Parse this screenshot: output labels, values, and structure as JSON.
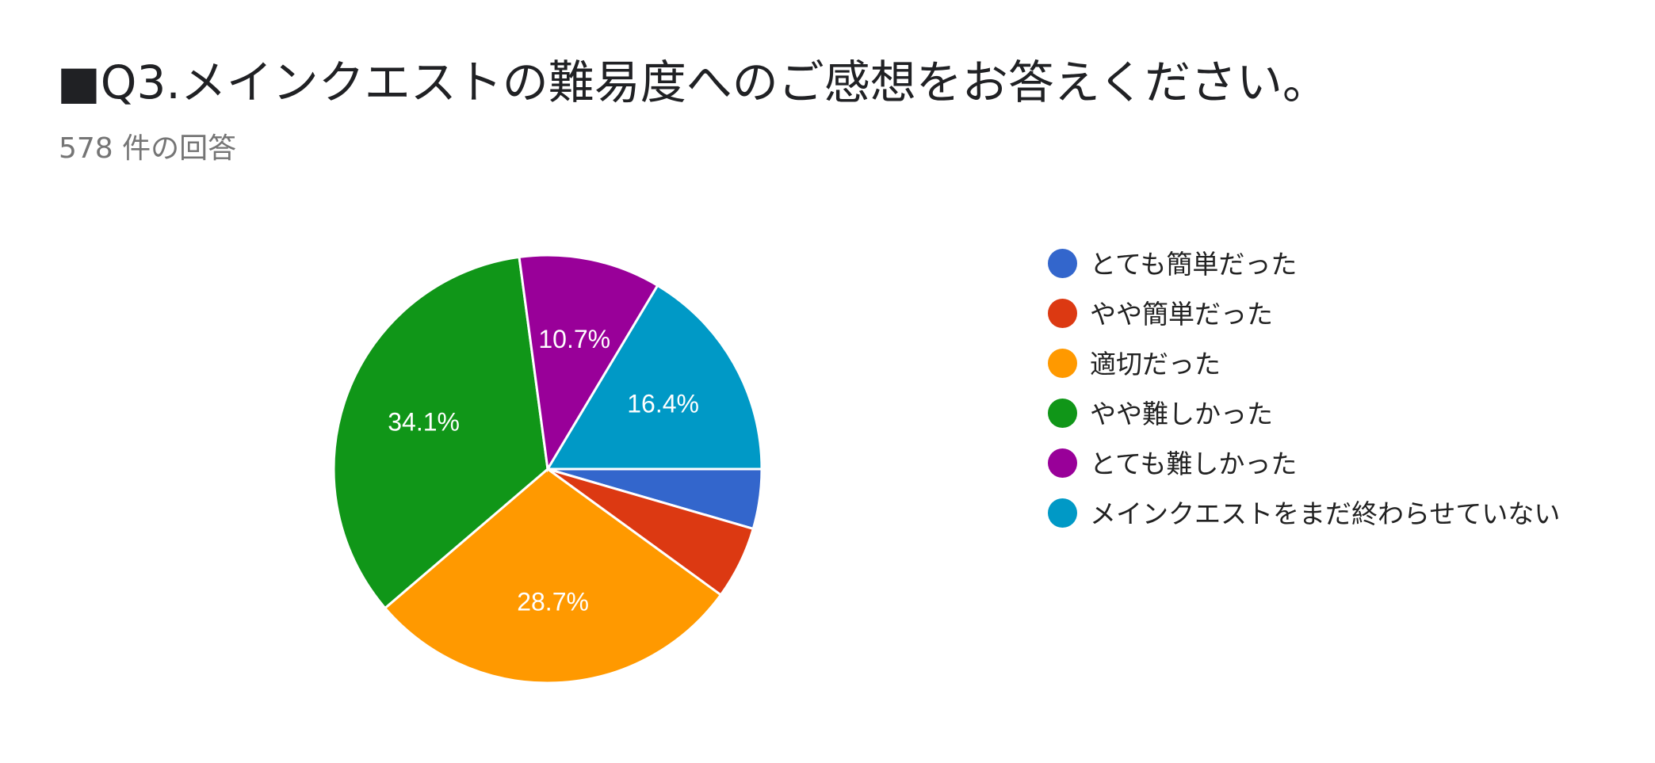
{
  "title": "■Q3.メインクエストの難易度へのご感想をお答えください。",
  "subtitle": "578 件の回答",
  "chart_data": {
    "type": "pie",
    "title": "■Q3.メインクエストの難易度へのご感想をお答えください。",
    "subtitle": "578 件の回答",
    "legend_position": "right",
    "slices": [
      {
        "label": "とても簡単だった",
        "value": 4.5,
        "color": "#3366cc",
        "data_label": ""
      },
      {
        "label": "やや簡単だった",
        "value": 5.5,
        "color": "#dc3912",
        "data_label": ""
      },
      {
        "label": "適切だった",
        "value": 28.7,
        "color": "#ff9900",
        "data_label": "28.7%"
      },
      {
        "label": "やや難しかった",
        "value": 34.1,
        "color": "#109618",
        "data_label": "34.1%"
      },
      {
        "label": "とても難しかった",
        "value": 10.7,
        "color": "#990099",
        "data_label": "10.7%"
      },
      {
        "label": "メインクエストをまだ終わらせていない",
        "value": 16.4,
        "color": "#0099c6",
        "data_label": "16.4%"
      }
    ]
  }
}
